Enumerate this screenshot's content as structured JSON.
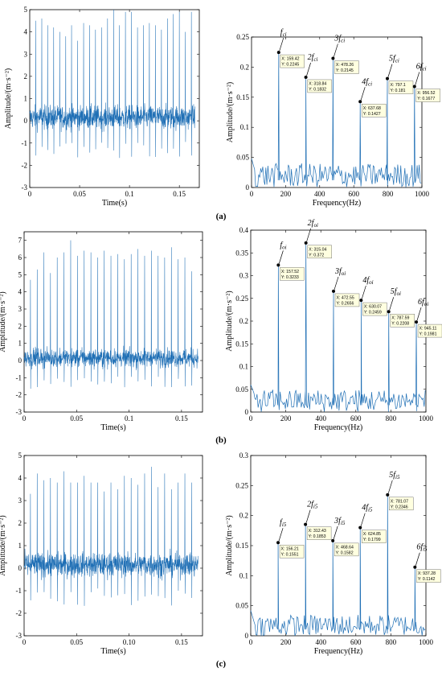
{
  "colors": {
    "line": "#1f6fb5",
    "axis": "#000000",
    "tip_bg": "#ffffe0",
    "tip_border": "#555555"
  },
  "panels": [
    {
      "label": "(a)",
      "time": {
        "xlabel": "Time(s)",
        "ylabel": "Amplitude/(m·s⁻²)",
        "xlim": [
          0,
          0.17
        ],
        "ylim": [
          -3,
          5
        ],
        "xticks": [
          "0",
          "0.05",
          "0.1",
          "0.15"
        ],
        "yticks": [
          "-3",
          "-2",
          "-1",
          "0",
          "1",
          "2",
          "3",
          "4",
          "5"
        ]
      },
      "freq": {
        "xlabel": "Frequency(Hz)",
        "ylabel": "Amplitude/(m·s⁻²)",
        "xlim": [
          0,
          1000
        ],
        "ylim": [
          0,
          0.25
        ],
        "xticks": [
          "0",
          "200",
          "400",
          "600",
          "800",
          "1000"
        ],
        "yticks": [
          "0",
          "0.05",
          "0.1",
          "0.15",
          "0.2",
          "0.25"
        ]
      }
    },
    {
      "label": "(b)",
      "time": {
        "xlabel": "Time(s)",
        "ylabel": "Amplitude/(m·s⁻²)",
        "xlim": [
          0,
          0.17
        ],
        "ylim": [
          -3,
          7.5
        ],
        "xticks": [
          "0",
          "0.05",
          "0.1",
          "0.15"
        ],
        "yticks": [
          "-3",
          "-2",
          "-1",
          "0",
          "1",
          "2",
          "3",
          "4",
          "5",
          "6",
          "7"
        ]
      },
      "freq": {
        "xlabel": "Frequency(Hz)",
        "ylabel": "Amplitude/(m·s⁻²)",
        "xlim": [
          0,
          1000
        ],
        "ylim": [
          0,
          0.4
        ],
        "xticks": [
          "0",
          "200",
          "400",
          "600",
          "800",
          "1000"
        ],
        "yticks": [
          "0",
          "0.05",
          "0.1",
          "0.15",
          "0.2",
          "0.25",
          "0.3",
          "0.35",
          "0.4"
        ]
      }
    },
    {
      "label": "(c)",
      "time": {
        "xlabel": "Time(s)",
        "ylabel": "Amplitude/(m·s⁻²)",
        "xlim": [
          0,
          0.17
        ],
        "ylim": [
          -3,
          5
        ],
        "xticks": [
          "0",
          "0.05",
          "0.10",
          "0.15"
        ],
        "yticks": [
          "-3",
          "-2",
          "-1",
          "0",
          "1",
          "2",
          "3",
          "4",
          "5"
        ]
      },
      "freq": {
        "xlabel": "Frequency(Hz)",
        "ylabel": "Amplitude/(m·s⁻²)",
        "xlim": [
          0,
          1000
        ],
        "ylim": [
          0,
          0.3
        ],
        "xticks": [
          "0",
          "200",
          "400",
          "600",
          "800",
          "1000"
        ],
        "yticks": [
          "0",
          "0.05",
          "0.1",
          "0.15",
          "0.2",
          "0.25",
          "0.3"
        ]
      }
    }
  ],
  "chart_data": [
    {
      "type": "line",
      "panel": "(a)",
      "title": "",
      "xlabel": "Time(s)",
      "ylabel": "Amplitude/(m·s⁻²)",
      "xlim": [
        0,
        0.17
      ],
      "ylim": [
        -3,
        5
      ],
      "impulses": {
        "x": [
          0.006,
          0.012,
          0.018,
          0.024,
          0.03,
          0.036,
          0.042,
          0.048,
          0.054,
          0.06,
          0.066,
          0.072,
          0.078,
          0.084,
          0.09,
          0.096,
          0.102,
          0.108,
          0.114,
          0.12,
          0.126,
          0.132,
          0.138,
          0.144,
          0.15,
          0.156,
          0.162
        ],
        "y": [
          4.5,
          4.6,
          4.3,
          4.2,
          4.0,
          3.8,
          4.3,
          3.6,
          4.4,
          4.3,
          4.1,
          4.2,
          4.6,
          5.0,
          4.3,
          4.9,
          4.9,
          4.2,
          4.3,
          4.4,
          4.3,
          4.1,
          4.6,
          4.8,
          4.9,
          4.0,
          4.9
        ]
      },
      "noise_range": [
        -2.2,
        1.5
      ]
    },
    {
      "type": "line",
      "panel": "(a)",
      "title": "",
      "xlabel": "Frequency(Hz)",
      "ylabel": "Amplitude/(m·s⁻²)",
      "xlim": [
        0,
        1000
      ],
      "ylim": [
        0,
        0.25
      ],
      "peaks": [
        {
          "label": "f_ci",
          "x": 159.42,
          "y": 0.2245,
          "tip_x": "X: 159.42",
          "tip_y": "Y: 0.2245"
        },
        {
          "label": "2f_ci",
          "x": 318.84,
          "y": 0.1832,
          "tip_x": "X: 318.84",
          "tip_y": "Y: 0.1832"
        },
        {
          "label": "3f_ci",
          "x": 478.26,
          "y": 0.2145,
          "tip_x": "X: 478.26",
          "tip_y": "Y: 0.2145"
        },
        {
          "label": "4f_ci",
          "x": 637.68,
          "y": 0.1427,
          "tip_x": "X: 637.68",
          "tip_y": "Y: 0.1427"
        },
        {
          "label": "5f_ci",
          "x": 797.1,
          "y": 0.181,
          "tip_x": "X: 797.1",
          "tip_y": "Y: 0.181"
        },
        {
          "label": "6f_ci",
          "x": 956.52,
          "y": 0.1677,
          "tip_x": "X: 956.52",
          "tip_y": "Y: 0.1677"
        }
      ],
      "noise_range": [
        0.0,
        0.04
      ]
    },
    {
      "type": "line",
      "panel": "(b)",
      "title": "",
      "xlabel": "Time(s)",
      "ylabel": "Amplitude/(m·s⁻²)",
      "xlim": [
        0,
        0.17
      ],
      "ylim": [
        -3,
        7.5
      ],
      "impulses": {
        "x": [
          0.006,
          0.0124,
          0.0188,
          0.0252,
          0.0316,
          0.038,
          0.0444,
          0.0508,
          0.0572,
          0.0636,
          0.07,
          0.0764,
          0.0828,
          0.0892,
          0.0956,
          0.102,
          0.1084,
          0.1148,
          0.1212,
          0.1276,
          0.134,
          0.1404,
          0.1468,
          0.1532,
          0.1596,
          0.166
        ],
        "y": [
          4.7,
          5.3,
          6.3,
          5.1,
          6.0,
          6.3,
          7.0,
          6.1,
          6.4,
          6.3,
          6.0,
          6.4,
          6.1,
          6.2,
          5.9,
          6.2,
          6.5,
          6.1,
          6.4,
          6.1,
          6.0,
          6.6,
          5.9,
          6.0,
          5.2,
          6.0
        ]
      },
      "noise_range": [
        -2.7,
        1.7
      ]
    },
    {
      "type": "line",
      "panel": "(b)",
      "title": "",
      "xlabel": "Frequency(Hz)",
      "ylabel": "Amplitude/(m·s⁻²)",
      "xlim": [
        0,
        1000
      ],
      "ylim": [
        0,
        0.4
      ],
      "peaks": [
        {
          "label": "f_oi",
          "x": 157.52,
          "y": 0.3233,
          "tip_x": "X: 157.52",
          "tip_y": "Y: 0.3233"
        },
        {
          "label": "2f_oi",
          "x": 315.04,
          "y": 0.372,
          "tip_x": "X: 315.04",
          "tip_y": "Y: 0.372"
        },
        {
          "label": "3f_oi",
          "x": 472.55,
          "y": 0.2656,
          "tip_x": "X: 472.55",
          "tip_y": "Y: 0.2656"
        },
        {
          "label": "4f_oi",
          "x": 630.07,
          "y": 0.2459,
          "tip_x": "X: 630.07",
          "tip_y": "Y: 0.2459"
        },
        {
          "label": "5f_oi",
          "x": 787.59,
          "y": 0.2208,
          "tip_x": "X: 787.59",
          "tip_y": "Y: 0.2208"
        },
        {
          "label": "6f_oi",
          "x": 945.11,
          "y": 0.1981,
          "tip_x": "X: 945.11",
          "tip_y": "Y: 0.1981"
        }
      ],
      "noise_range": [
        0.0,
        0.05
      ]
    },
    {
      "type": "line",
      "panel": "(c)",
      "title": "",
      "xlabel": "Time(s)",
      "ylabel": "Amplitude/(m·s⁻²)",
      "xlim": [
        0,
        0.17
      ],
      "ylim": [
        -3,
        5
      ],
      "impulses": {
        "x": [
          0.006,
          0.0124,
          0.0188,
          0.0252,
          0.0316,
          0.038,
          0.0444,
          0.0508,
          0.0572,
          0.0636,
          0.07,
          0.0764,
          0.0828,
          0.0892,
          0.0956,
          0.102,
          0.1084,
          0.1148,
          0.1212,
          0.1276,
          0.134,
          0.1404,
          0.1468,
          0.1532,
          0.1596,
          0.166
        ],
        "y": [
          3.3,
          4.2,
          3.9,
          4.0,
          3.8,
          4.3,
          3.8,
          3.8,
          4.1,
          3.8,
          3.8,
          3.4,
          3.8,
          3.5,
          4.1,
          4.0,
          3.7,
          4.2,
          4.5,
          3.6,
          4.2,
          3.5,
          3.8,
          4.2,
          3.8,
          3.9
        ]
      },
      "noise_range": [
        -2.4,
        1.8
      ]
    },
    {
      "type": "line",
      "panel": "(c)",
      "title": "",
      "xlabel": "Frequency(Hz)",
      "ylabel": "Amplitude/(m·s⁻²)",
      "xlim": [
        0,
        1000
      ],
      "ylim": [
        0,
        0.3
      ],
      "peaks": [
        {
          "label": "f_i5",
          "x": 156.21,
          "y": 0.1551,
          "tip_x": "X: 156.21",
          "tip_y": "Y: 0.1551"
        },
        {
          "label": "2f_i5",
          "x": 312.43,
          "y": 0.1853,
          "tip_x": "X: 312.43",
          "tip_y": "Y: 0.1853"
        },
        {
          "label": "3f_i5",
          "x": 468.64,
          "y": 0.1582,
          "tip_x": "X: 468.64",
          "tip_y": "Y: 0.1582"
        },
        {
          "label": "4f_i5",
          "x": 624.85,
          "y": 0.1799,
          "tip_x": "X: 624.85",
          "tip_y": "Y: 0.1799"
        },
        {
          "label": "5f_i5",
          "x": 781.07,
          "y": 0.2346,
          "tip_x": "X: 781.07",
          "tip_y": "Y: 0.2346"
        },
        {
          "label": "6f_i5",
          "x": 937.28,
          "y": 0.1142,
          "tip_x": "X: 937.28",
          "tip_y": "Y: 0.1142"
        }
      ],
      "noise_range": [
        0.0,
        0.035
      ]
    }
  ]
}
